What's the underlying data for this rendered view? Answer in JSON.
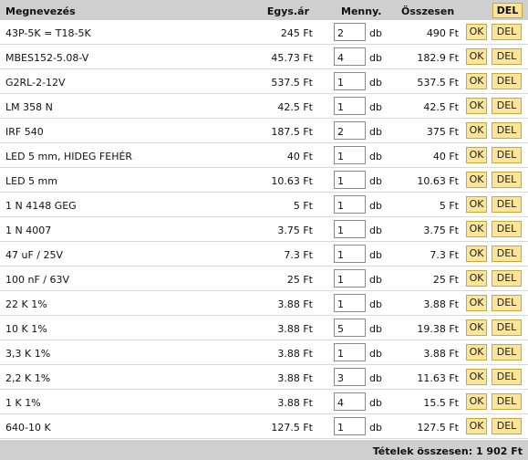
{
  "header": {
    "name": "Megnevezés",
    "price": "Egys.ár",
    "qty": "Menny.",
    "total": "Összesen",
    "del_all": "DEL"
  },
  "labels": {
    "unit": "db",
    "ok": "OK",
    "del": "DEL"
  },
  "rows": [
    {
      "name": "43P-5K = T18-5K",
      "price": "245 Ft",
      "qty": "2",
      "total": "490 Ft"
    },
    {
      "name": "MBES152-5.08-V",
      "price": "45.73 Ft",
      "qty": "4",
      "total": "182.9 Ft"
    },
    {
      "name": "G2RL-2-12V",
      "price": "537.5 Ft",
      "qty": "1",
      "total": "537.5 Ft"
    },
    {
      "name": "LM 358 N",
      "price": "42.5 Ft",
      "qty": "1",
      "total": "42.5 Ft"
    },
    {
      "name": "IRF 540",
      "price": "187.5 Ft",
      "qty": "2",
      "total": "375 Ft"
    },
    {
      "name": "LED 5 mm, HIDEG FEHÉR",
      "price": "40 Ft",
      "qty": "1",
      "total": "40 Ft"
    },
    {
      "name": "LED 5 mm",
      "price": "10.63 Ft",
      "qty": "1",
      "total": "10.63 Ft"
    },
    {
      "name": "1 N 4148 GEG",
      "price": "5 Ft",
      "qty": "1",
      "total": "5 Ft"
    },
    {
      "name": "1 N 4007",
      "price": "3.75 Ft",
      "qty": "1",
      "total": "3.75 Ft"
    },
    {
      "name": "47 uF / 25V",
      "price": "7.3 Ft",
      "qty": "1",
      "total": "7.3 Ft"
    },
    {
      "name": "100 nF / 63V",
      "price": "25 Ft",
      "qty": "1",
      "total": "25 Ft"
    },
    {
      "name": "22 K 1%",
      "price": "3.88 Ft",
      "qty": "1",
      "total": "3.88 Ft"
    },
    {
      "name": "10 K 1%",
      "price": "3.88 Ft",
      "qty": "5",
      "total": "19.38 Ft"
    },
    {
      "name": "3,3 K 1%",
      "price": "3.88 Ft",
      "qty": "1",
      "total": "3.88 Ft"
    },
    {
      "name": "2,2 K 1%",
      "price": "3.88 Ft",
      "qty": "3",
      "total": "11.63 Ft"
    },
    {
      "name": "1 K 1%",
      "price": "3.88 Ft",
      "qty": "4",
      "total": "15.5 Ft"
    },
    {
      "name": "640-10 K",
      "price": "127.5 Ft",
      "qty": "1",
      "total": "127.5 Ft"
    }
  ],
  "footer": {
    "summary": "Tételek összesen: 1 902 Ft"
  }
}
